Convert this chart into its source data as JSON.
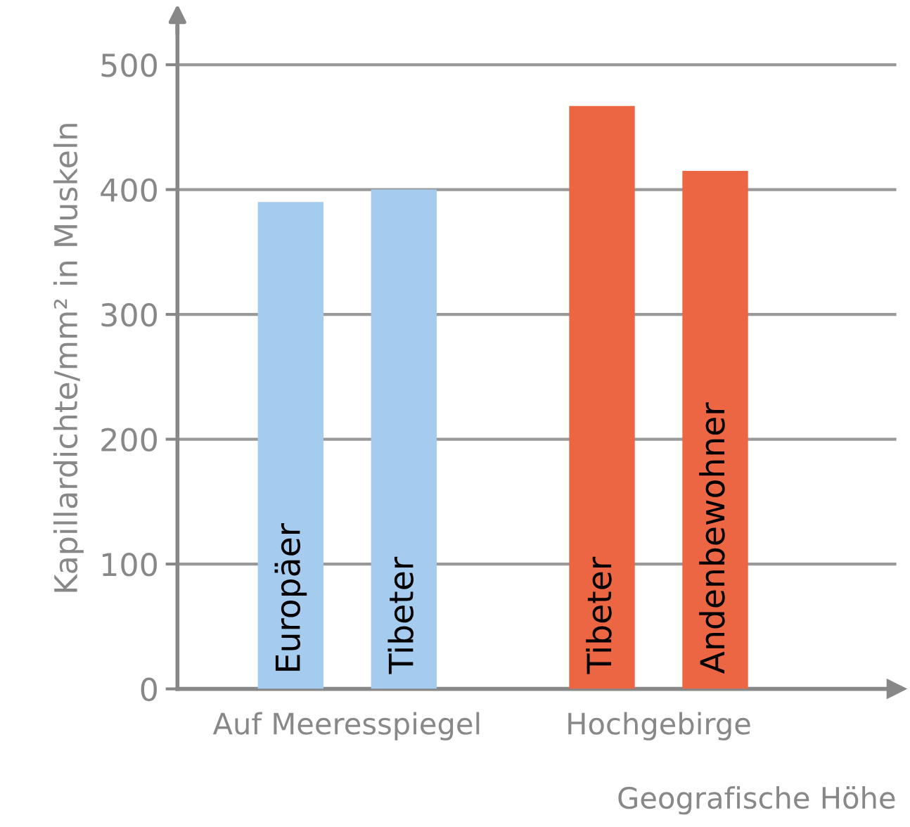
{
  "chart_data": {
    "type": "bar",
    "categories": [
      "Europäer",
      "Tibeter",
      "Tibeter",
      "Andenbewohner"
    ],
    "values": [
      390,
      400,
      467,
      415
    ],
    "colors": [
      "#a5cbee",
      "#a5cbee",
      "#ec6643",
      "#ec6643"
    ],
    "xlabel": "Geografische Höhe",
    "ylabel": "Kapillardichte/mm² in Muskeln",
    "annotations": [
      "Auf Meeresspiegel",
      "Hochgebirge"
    ],
    "ylim": [
      0,
      530
    ],
    "yticks": [
      0,
      100,
      200,
      300,
      400,
      500
    ],
    "grid": "y"
  }
}
